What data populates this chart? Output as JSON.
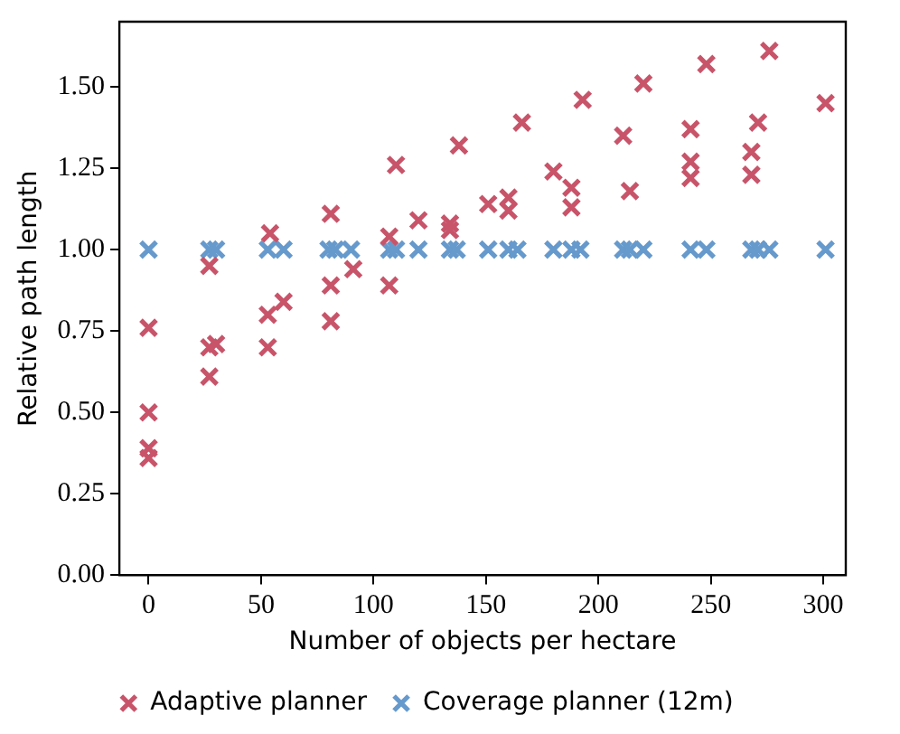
{
  "chart_data": {
    "type": "scatter",
    "xlabel": "Number of objects per hectare",
    "ylabel": "Relative path length",
    "xlim": [
      -13,
      310
    ],
    "ylim": [
      0,
      1.7
    ],
    "xticks": [
      0,
      50,
      100,
      150,
      200,
      250,
      300
    ],
    "yticks": [
      {
        "value": 0,
        "label": "0.00"
      },
      {
        "value": 0.25,
        "label": "0.25"
      },
      {
        "value": 0.5,
        "label": "0.50"
      },
      {
        "value": 0.75,
        "label": "0.75"
      },
      {
        "value": 1,
        "label": "1.00"
      },
      {
        "value": 1.25,
        "label": "1.25"
      },
      {
        "value": 1.5,
        "label": "1.50"
      }
    ],
    "grid": false,
    "legend": "bottom",
    "marker": "cross",
    "series": [
      {
        "name": "Adaptive planner",
        "color": "#c8546a",
        "x": [
          0,
          0,
          0,
          0,
          27,
          27,
          30,
          27,
          54,
          53,
          60,
          53,
          81,
          81,
          81,
          91,
          110,
          107,
          107,
          120,
          134,
          134,
          138,
          151,
          160,
          160,
          166,
          180,
          188,
          188,
          193,
          211,
          214,
          220,
          241,
          241,
          241,
          248,
          268,
          268,
          271,
          276,
          301
        ],
        "values": [
          0.76,
          0.5,
          0.39,
          0.36,
          0.95,
          0.7,
          0.71,
          0.61,
          1.05,
          0.8,
          0.84,
          0.7,
          1.11,
          0.89,
          0.78,
          0.94,
          1.26,
          1.04,
          0.89,
          1.09,
          1.08,
          1.06,
          1.32,
          1.14,
          1.16,
          1.12,
          1.39,
          1.24,
          1.19,
          1.13,
          1.46,
          1.35,
          1.18,
          1.51,
          1.37,
          1.27,
          1.22,
          1.57,
          1.3,
          1.23,
          1.39,
          1.61,
          1.45
        ]
      },
      {
        "name": "Coverage planner (12m)",
        "color": "#6699cc",
        "x": [
          0,
          27,
          30,
          53,
          60,
          80,
          83,
          90,
          107,
          110,
          120,
          134,
          137,
          151,
          160,
          164,
          180,
          188,
          192,
          211,
          214,
          220,
          241,
          248,
          268,
          271,
          276,
          301
        ],
        "values": [
          1,
          1,
          1,
          1,
          1,
          1,
          1,
          1,
          1,
          1,
          1,
          1,
          1,
          1,
          1,
          1,
          1,
          1,
          1,
          1,
          1,
          1,
          1,
          1,
          1,
          1,
          1,
          1
        ]
      }
    ]
  }
}
